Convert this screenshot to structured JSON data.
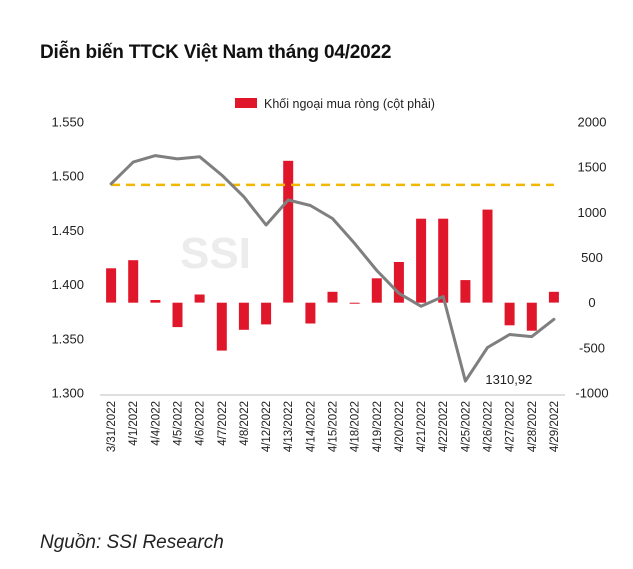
{
  "title": "Diễn biến TTCK Việt Nam tháng 04/2022",
  "source": "Nguồn: SSI Research",
  "watermark": "SSI",
  "colors": {
    "bar": "#e0162b",
    "line": "#7f7f7f",
    "dashed": "#f2b705",
    "text": "#222222"
  },
  "chart_data": {
    "type": "bar",
    "categories": [
      "3/31/2022",
      "4/1/2022",
      "4/4/2022",
      "4/5/2022",
      "4/6/2022",
      "4/7/2022",
      "4/8/2022",
      "4/12/2022",
      "4/13/2022",
      "4/14/2022",
      "4/15/2022",
      "4/18/2022",
      "4/19/2022",
      "4/20/2022",
      "4/21/2022",
      "4/22/2022",
      "4/25/2022",
      "4/26/2022",
      "4/27/2022",
      "4/28/2022",
      "4/29/2022"
    ],
    "series": [
      {
        "name": "Khối ngoại mua ròng (cột phải)",
        "type": "bar",
        "axis": "right",
        "values": [
          380,
          470,
          30,
          -270,
          90,
          -530,
          -300,
          -240,
          1570,
          -230,
          120,
          -10,
          270,
          450,
          930,
          930,
          250,
          1030,
          -250,
          -310,
          120
        ]
      },
      {
        "type": "line",
        "axis": "left",
        "values": [
          1493,
          1513,
          1519,
          1516,
          1518,
          1501,
          1481,
          1455,
          1478,
          1473,
          1461,
          1438,
          1413,
          1392,
          1380,
          1389,
          1311,
          1342,
          1354,
          1352,
          1368
        ]
      }
    ],
    "reference_line": {
      "axis": "left",
      "value": 1492
    },
    "annotations": [
      {
        "index": 16,
        "text": "1310,92"
      }
    ],
    "y_left": {
      "min": 1.3,
      "max": 1.55,
      "ticks": [
        "1.550",
        "1.500",
        "1.450",
        "1.400",
        "1.350",
        "1.300"
      ]
    },
    "y_right": {
      "min": -1000,
      "max": 2000,
      "ticks": [
        "2000",
        "1500",
        "1000",
        "500",
        "0",
        "-500",
        "-1000"
      ]
    },
    "legend": {
      "position": "top",
      "label": "Khối ngoại mua ròng (cột phải)"
    },
    "grid": false
  }
}
